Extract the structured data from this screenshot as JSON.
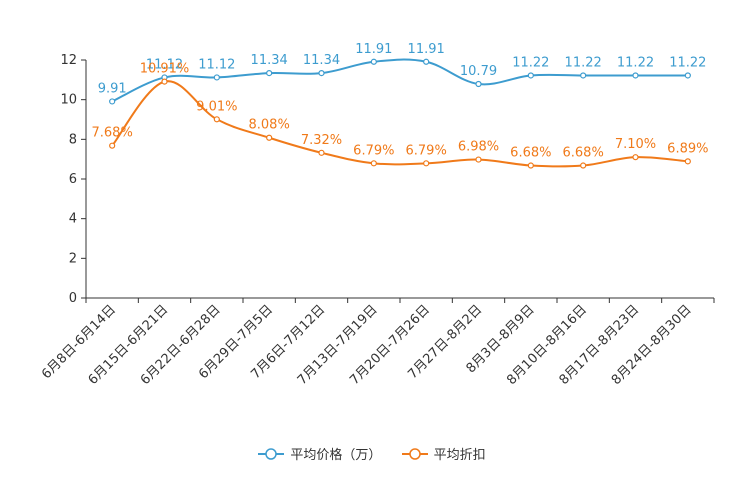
{
  "chart_data": {
    "type": "line",
    "categories": [
      "6月8日-6月14日",
      "6月15日-6月21日",
      "6月22日-6月28日",
      "6月29日-7月5日",
      "7月6日-7月12日",
      "7月13日-7月19日",
      "7月20日-7月26日",
      "7月27日-8月2日",
      "8月3日-8月9日",
      "8月10日-8月16日",
      "8月17日-8月23日",
      "8月24日-8月30日"
    ],
    "ylim": [
      0,
      12
    ],
    "yticks": [
      0,
      2,
      4,
      6,
      8,
      10,
      12
    ],
    "series": [
      {
        "name": "平均价格（万）",
        "color": "#3d9ccf",
        "values": [
          9.91,
          11.12,
          11.12,
          11.34,
          11.34,
          11.91,
          11.91,
          10.79,
          11.22,
          11.22,
          11.22,
          11.22
        ],
        "labels": [
          "9.91",
          "11.12",
          "11.12",
          "11.34",
          "11.34",
          "11.91",
          "11.91",
          "10.79",
          "11.22",
          "11.22",
          "11.22",
          "11.22"
        ]
      },
      {
        "name": "平均折扣",
        "color": "#f07a1a",
        "values": [
          7.68,
          10.91,
          9.01,
          8.08,
          7.32,
          6.79,
          6.79,
          6.98,
          6.68,
          6.68,
          7.1,
          6.89
        ],
        "labels": [
          "7.68%",
          "10.91%",
          "9.01%",
          "8.08%",
          "7.32%",
          "6.79%",
          "6.79%",
          "6.98%",
          "6.68%",
          "6.68%",
          "7.10%",
          "6.89%"
        ]
      }
    ]
  }
}
